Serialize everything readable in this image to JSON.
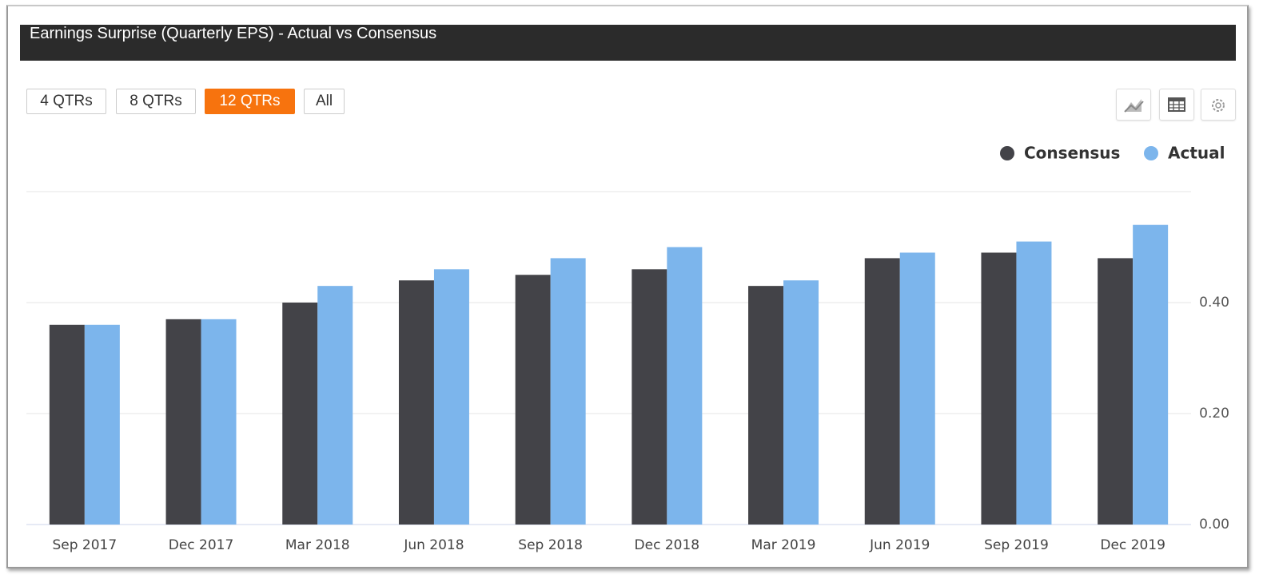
{
  "panel": {
    "title": "Earnings Surprise (Quarterly EPS) - Actual vs Consensus",
    "ranges": [
      "4 QTRs",
      "8 QTRs",
      "12 QTRs",
      "All"
    ],
    "active_range": 2
  },
  "chart_data": {
    "type": "bar",
    "categories": [
      "Sep 2017",
      "Dec 2017",
      "Mar 2018",
      "Jun 2018",
      "Sep 2018",
      "Dec 2018",
      "Mar 2019",
      "Jun 2019",
      "Sep 2019",
      "Dec 2019"
    ],
    "series": [
      {
        "name": "Consensus",
        "color": "#434348",
        "values": [
          0.36,
          0.37,
          0.4,
          0.44,
          0.45,
          0.46,
          0.43,
          0.48,
          0.49,
          0.48
        ]
      },
      {
        "name": "Actual",
        "color": "#7cb5ec",
        "values": [
          0.36,
          0.37,
          0.43,
          0.46,
          0.48,
          0.5,
          0.44,
          0.49,
          0.51,
          0.54
        ]
      }
    ],
    "ylim": [
      0,
      0.6
    ],
    "yticks": [
      {
        "value": 0,
        "label": "0.00"
      },
      {
        "value": 0.2,
        "label": "0.20"
      },
      {
        "value": 0.4,
        "label": "0.40"
      }
    ],
    "grid": true,
    "legend": "top-right"
  }
}
